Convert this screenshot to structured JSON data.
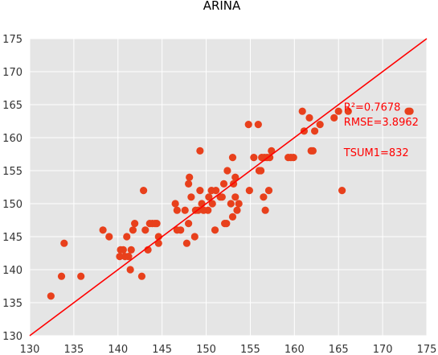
{
  "chart_data": {
    "type": "scatter",
    "title": "ARINA",
    "xlabel": "",
    "ylabel": "",
    "xlim": [
      130,
      175
    ],
    "ylim": [
      130,
      175
    ],
    "xticks": [
      130,
      135,
      140,
      145,
      150,
      155,
      160,
      165,
      170,
      175
    ],
    "yticks": [
      130,
      135,
      140,
      145,
      150,
      155,
      160,
      165,
      170,
      175
    ],
    "grid": true,
    "background": "#e5e5e5",
    "point_color": "#e8401c",
    "line_color": "#ff0000",
    "text_color": "#ff0000",
    "fit_line": {
      "x": [
        130,
        175
      ],
      "y": [
        130,
        175
      ]
    },
    "annotations": [
      {
        "id": "r2",
        "text": "R²=0.7678",
        "x": 165.6,
        "y": 164.1
      },
      {
        "id": "rmse",
        "text": "RMSE=3.8962",
        "x": 165.6,
        "y": 161.8
      },
      {
        "id": "tsum",
        "text": "TSUM1=832",
        "x": 165.6,
        "y": 157.2
      }
    ],
    "points": [
      [
        132.4,
        136
      ],
      [
        133.6,
        139
      ],
      [
        133.9,
        144
      ],
      [
        135.8,
        139
      ],
      [
        138.3,
        146
      ],
      [
        139.0,
        145
      ],
      [
        140.2,
        142
      ],
      [
        140.3,
        143
      ],
      [
        140.6,
        143
      ],
      [
        140.8,
        142
      ],
      [
        141.0,
        145
      ],
      [
        141.2,
        142
      ],
      [
        141.4,
        140
      ],
      [
        141.5,
        143
      ],
      [
        141.7,
        146
      ],
      [
        141.9,
        147
      ],
      [
        142.7,
        139
      ],
      [
        142.9,
        152
      ],
      [
        143.1,
        146
      ],
      [
        143.4,
        143
      ],
      [
        143.6,
        147
      ],
      [
        143.9,
        147
      ],
      [
        144.2,
        147
      ],
      [
        144.4,
        147
      ],
      [
        144.6,
        145
      ],
      [
        144.6,
        144
      ],
      [
        146.5,
        150
      ],
      [
        146.7,
        149
      ],
      [
        146.7,
        146
      ],
      [
        147.1,
        146
      ],
      [
        147.6,
        149
      ],
      [
        147.8,
        144
      ],
      [
        148.0,
        147
      ],
      [
        148.0,
        153
      ],
      [
        148.1,
        154
      ],
      [
        148.3,
        151
      ],
      [
        148.7,
        145
      ],
      [
        148.8,
        149
      ],
      [
        149.1,
        149
      ],
      [
        149.3,
        152
      ],
      [
        149.3,
        158
      ],
      [
        149.5,
        150
      ],
      [
        149.7,
        149
      ],
      [
        150.2,
        149
      ],
      [
        150.3,
        151
      ],
      [
        150.6,
        152
      ],
      [
        150.7,
        150
      ],
      [
        151.0,
        146
      ],
      [
        151.1,
        152
      ],
      [
        151.6,
        151
      ],
      [
        151.8,
        151
      ],
      [
        152.0,
        153
      ],
      [
        152.1,
        147
      ],
      [
        152.3,
        147
      ],
      [
        152.4,
        155
      ],
      [
        152.8,
        150
      ],
      [
        153.0,
        157
      ],
      [
        153.0,
        148
      ],
      [
        153.1,
        153
      ],
      [
        153.3,
        154
      ],
      [
        153.3,
        151
      ],
      [
        153.5,
        149
      ],
      [
        153.7,
        150
      ],
      [
        154.8,
        162
      ],
      [
        154.9,
        152
      ],
      [
        155.4,
        157
      ],
      [
        155.9,
        162
      ],
      [
        156.0,
        155
      ],
      [
        156.2,
        155
      ],
      [
        156.3,
        157
      ],
      [
        156.5,
        151
      ],
      [
        156.6,
        157
      ],
      [
        156.7,
        149
      ],
      [
        156.9,
        157
      ],
      [
        157.1,
        152
      ],
      [
        157.2,
        157
      ],
      [
        157.4,
        158
      ],
      [
        159.3,
        157
      ],
      [
        159.6,
        157
      ],
      [
        159.9,
        157
      ],
      [
        160.9,
        164
      ],
      [
        161.1,
        161
      ],
      [
        161.7,
        163
      ],
      [
        161.9,
        158
      ],
      [
        162.1,
        158
      ],
      [
        162.3,
        161
      ],
      [
        162.9,
        162
      ],
      [
        164.5,
        163
      ],
      [
        165.0,
        164
      ],
      [
        165.4,
        152
      ],
      [
        166.1,
        164
      ],
      [
        172.9,
        164
      ],
      [
        173.1,
        164
      ]
    ]
  }
}
